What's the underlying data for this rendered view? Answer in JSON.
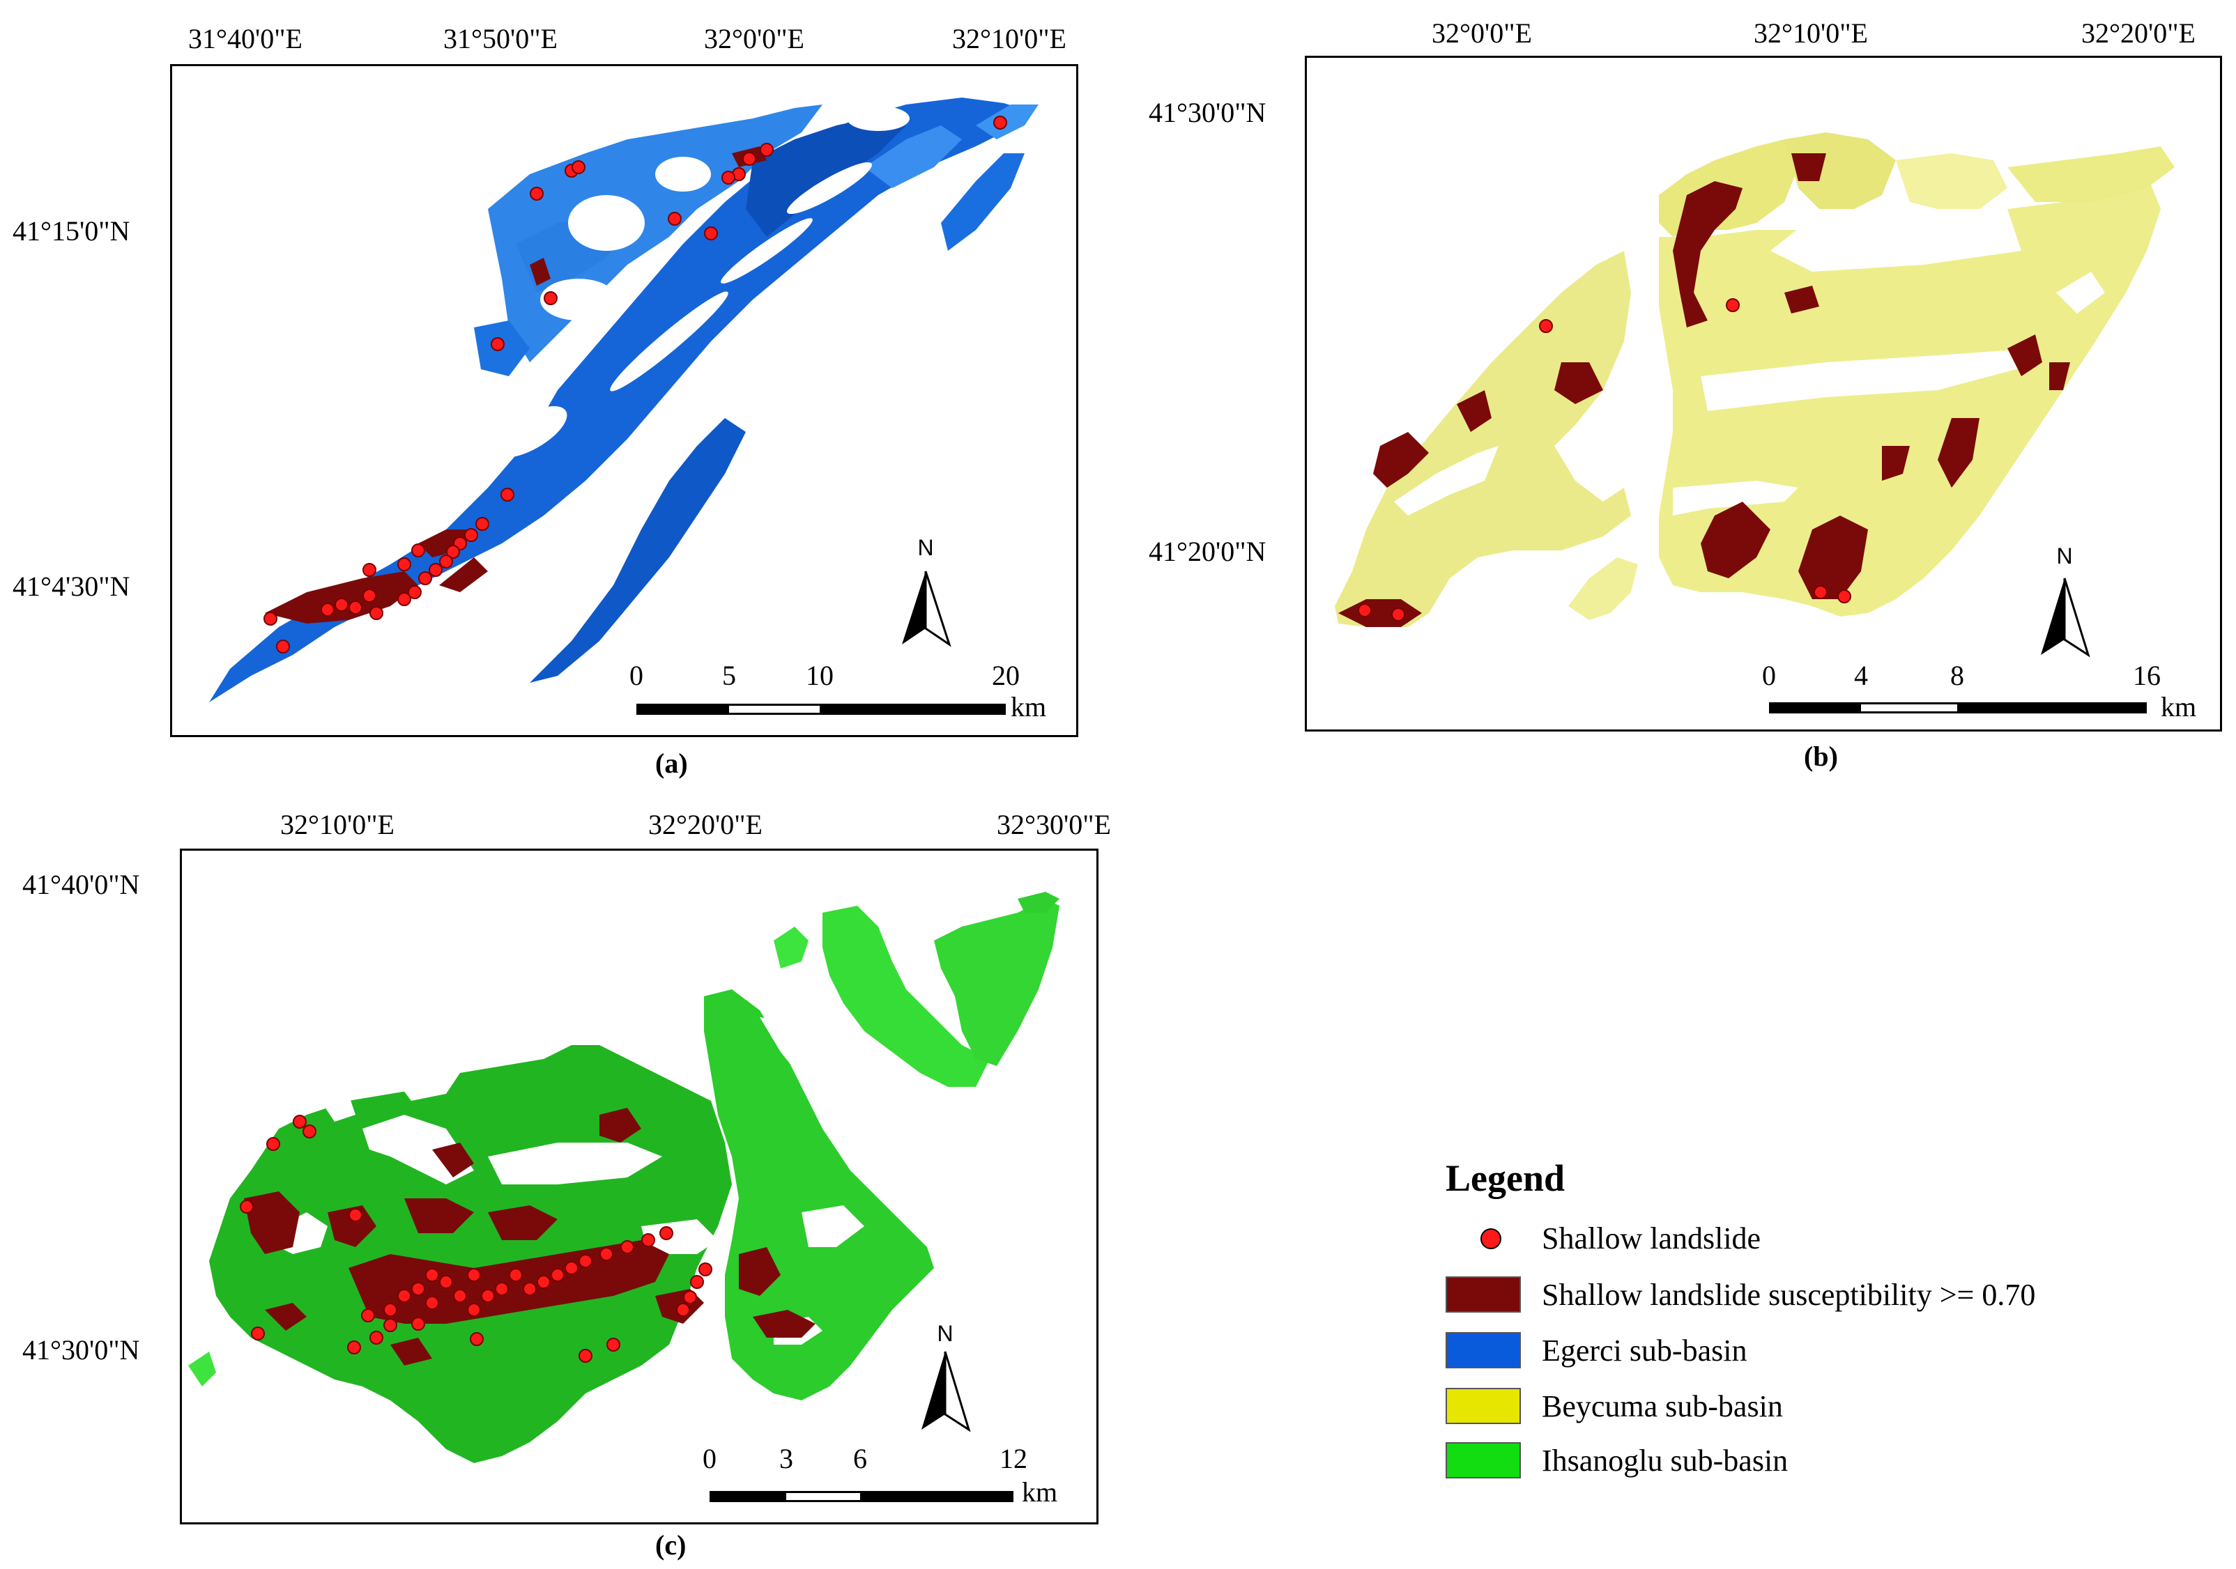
{
  "panels": {
    "a": {
      "caption": "(a)",
      "lon_labels": [
        "31°40'0\"E",
        "31°50'0\"E",
        "32°0'0\"E",
        "32°10'0\"E"
      ],
      "lat_labels": [
        "41°15'0\"N",
        "41°4'30\"N"
      ],
      "scale_numbers": [
        "0",
        "5",
        "10",
        "20"
      ],
      "scale_unit": "km",
      "north": "N",
      "basin": "Egerci sub-basin"
    },
    "b": {
      "caption": "(b)",
      "lon_labels": [
        "32°0'0\"E",
        "32°10'0\"E",
        "32°20'0\"E"
      ],
      "lat_labels": [
        "41°30'0\"N",
        "41°20'0\"N"
      ],
      "scale_numbers": [
        "0",
        "4",
        "8",
        "16"
      ],
      "scale_unit": "km",
      "north": "N",
      "basin": "Beycuma sub-basin"
    },
    "c": {
      "caption": "(c)",
      "lon_labels": [
        "32°10'0\"E",
        "32°20'0\"E",
        "32°30'0\"E"
      ],
      "lat_labels": [
        "41°40'0\"N",
        "41°30'0\"N"
      ],
      "scale_numbers": [
        "0",
        "3",
        "6",
        "12"
      ],
      "scale_unit": "km",
      "north": "N",
      "basin": "Ihsanoglu sub-basin"
    }
  },
  "legend": {
    "title": "Legend",
    "items": [
      {
        "label": "Shallow landslide",
        "symbol": "dot",
        "color": "#ff1a1a"
      },
      {
        "label": "Shallow landslide susceptibility >= 0.70",
        "symbol": "box",
        "color": "#7a0a0a"
      },
      {
        "label": "Egerci sub-basin",
        "symbol": "box",
        "color": "#0a5adc"
      },
      {
        "label": "Beycuma sub-basin",
        "symbol": "box",
        "color": "#e6e600"
      },
      {
        "label": "Ihsanoglu sub-basin",
        "symbol": "box",
        "color": "#11dd11"
      }
    ]
  },
  "colors": {
    "landslide": "#ff1a1a",
    "susceptibility": "#7a0a0a",
    "egerci": "#1e6ed2",
    "beycuma": "#ecec82",
    "ihsanoglu": "#22c422"
  }
}
